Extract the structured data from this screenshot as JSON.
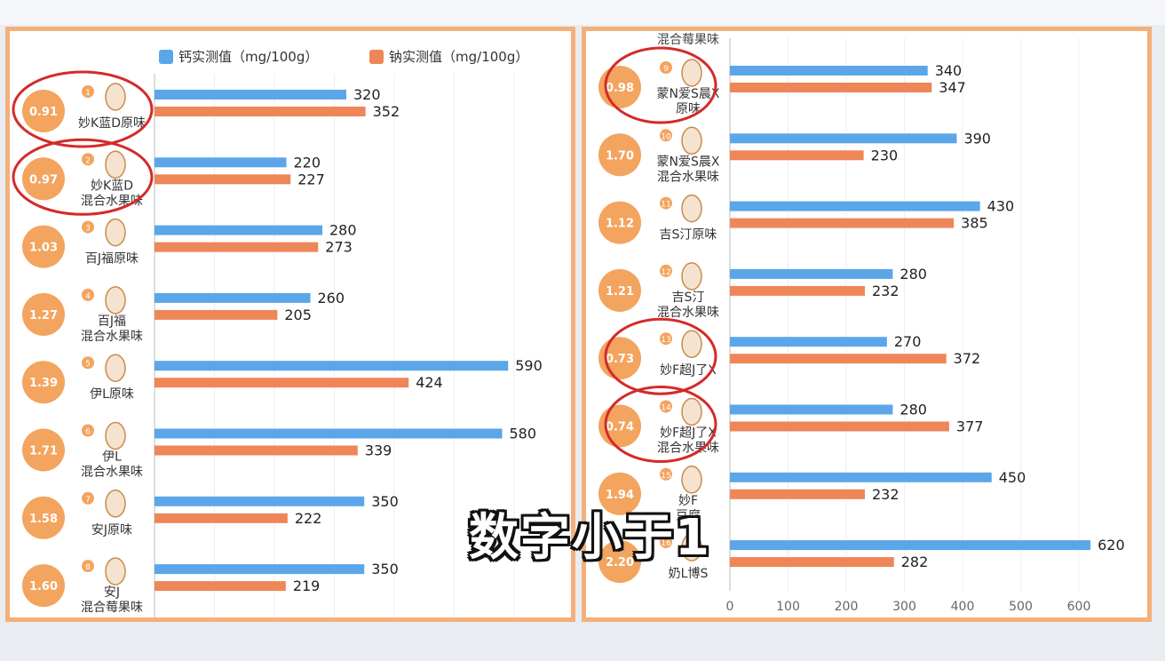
{
  "legend": {
    "calcium": "钙实测值（mg/100g）",
    "sodium": "钠实测值（mg/100g）"
  },
  "colors": {
    "calcium": "#5aa6e8",
    "sodium": "#ee8657",
    "panel_border": "#f3b07a",
    "badge": "#f3a45e",
    "circle": "#d42a2a"
  },
  "overlay_text": "数字小于1",
  "chart_data": [
    {
      "type": "bar",
      "orientation": "horizontal",
      "categories": [
        [
          "妙K蓝D原味"
        ],
        [
          "妙K蓝D",
          "混合水果味"
        ],
        [
          "百J福原味"
        ],
        [
          "百J福",
          "混合水果味"
        ],
        [
          "伊L原味"
        ],
        [
          "伊L",
          "混合水果味"
        ],
        [
          "安J原味"
        ],
        [
          "安J",
          "混合莓果味"
        ]
      ],
      "rank": [
        "1",
        "2",
        "3",
        "4",
        "5",
        "6",
        "7",
        "8"
      ],
      "badges": [
        "0.91",
        "0.97",
        "1.03",
        "1.27",
        "1.39",
        "1.71",
        "1.58",
        "1.60"
      ],
      "circled": [
        true,
        true,
        false,
        false,
        false,
        false,
        false,
        false
      ],
      "series": [
        {
          "name": "钙实测值（mg/100g）",
          "values": [
            320,
            220,
            280,
            260,
            590,
            580,
            350,
            350
          ]
        },
        {
          "name": "钠实测值（mg/100g）",
          "values": [
            352,
            227,
            273,
            205,
            424,
            339,
            222,
            219
          ]
        }
      ],
      "xlim": [
        0,
        650
      ]
    },
    {
      "type": "bar",
      "orientation": "horizontal",
      "categories": [
        [
          "蒙N爱S晨X",
          "原味"
        ],
        [
          "蒙N爱S晨X",
          "混合水果味"
        ],
        [
          "吉S汀原味"
        ],
        [
          "吉S汀",
          "混合水果味"
        ],
        [
          "妙F超J了X"
        ],
        [
          "妙F超J了X",
          "混合水果味"
        ],
        [
          "妙F",
          "豆腐"
        ],
        [
          "奶L博S"
        ]
      ],
      "rank": [
        "9",
        "10",
        "11",
        "12",
        "13",
        "14",
        "15",
        "16"
      ],
      "badges": [
        "0.98",
        "1.70",
        "1.12",
        "1.21",
        "0.73",
        "0.74",
        "1.94",
        "2.20"
      ],
      "circled": [
        true,
        false,
        false,
        false,
        true,
        true,
        false,
        false
      ],
      "series": [
        {
          "name": "钙实测值（mg/100g）",
          "values": [
            340,
            390,
            430,
            280,
            270,
            280,
            450,
            620
          ]
        },
        {
          "name": "钠实测值（mg/100g）",
          "values": [
            347,
            230,
            385,
            232,
            372,
            377,
            232,
            282
          ]
        }
      ],
      "xlim": [
        0,
        650
      ],
      "xticks": [
        "0",
        "100",
        "200",
        "300",
        "400",
        "500",
        "600"
      ],
      "top_label": "混合莓果味"
    }
  ]
}
